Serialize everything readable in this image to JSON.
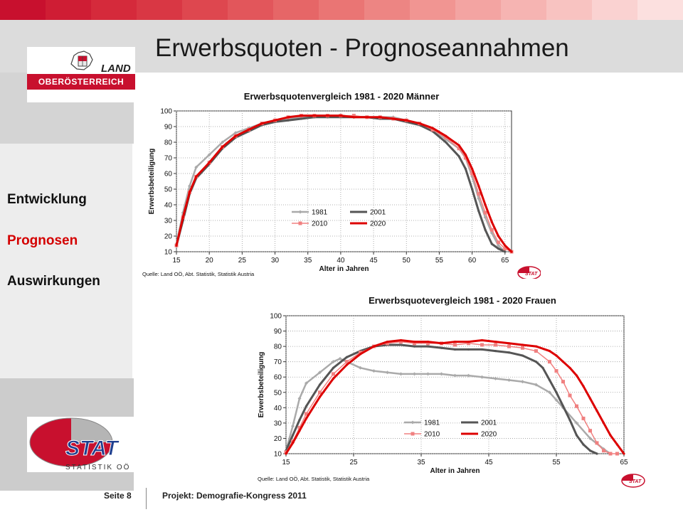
{
  "header": {
    "title": "Erwerbsquoten - Prognoseannahmen",
    "bar_colors": [
      "#c8102e",
      "#cf1d34",
      "#d52a3b",
      "#d93744",
      "#de474f",
      "#e2565b",
      "#e66667",
      "#ea7574",
      "#ed8583",
      "#f19592",
      "#f3a4a2",
      "#f6b4b2",
      "#f8c3c1",
      "#fad2d1",
      "#fce0df"
    ]
  },
  "logos": {
    "land": {
      "word": "LAND",
      "region": "OBERÖSTERREICH"
    },
    "stat": {
      "word": "STAT",
      "subtitle": "STATISTIK OÖ"
    }
  },
  "sidebar": {
    "items": [
      {
        "label": "Entwicklung",
        "active": false
      },
      {
        "label": "Prognosen",
        "active": true
      },
      {
        "label": "Auswirkungen",
        "active": false
      }
    ]
  },
  "footer": {
    "page": "Seite 8",
    "project": "Projekt: Demografie-Kongress  2011"
  },
  "colors": {
    "c1981": "#aaaaaa",
    "c2001": "#555555",
    "c2010": "#f08080",
    "c2020": "#dd0000"
  },
  "chart_data": [
    {
      "type": "line",
      "title": "Erwerbsquotenvergleich 1981 - 2020  Männer",
      "xlabel": "Alter in Jahren",
      "ylabel": "Erwerbsbeteiligung",
      "source": "Quelle: Land OÖ, Abt. Statistik, Statistik Austria",
      "badge": "STAT",
      "xlim": [
        15,
        66
      ],
      "ylim": [
        10,
        100
      ],
      "xticks": [
        15,
        20,
        25,
        30,
        35,
        40,
        45,
        50,
        55,
        60,
        65
      ],
      "yticks": [
        10,
        20,
        30,
        40,
        50,
        60,
        70,
        80,
        90,
        100
      ],
      "grid": true,
      "legend_position": "lower-left",
      "series": [
        {
          "name": "1981",
          "x": [
            15,
            16,
            17,
            18,
            20,
            22,
            24,
            26,
            28,
            30,
            32,
            34,
            36,
            38,
            40,
            42,
            44,
            46,
            48,
            50,
            52,
            54,
            56,
            58,
            59,
            60,
            61,
            62,
            63,
            64,
            65
          ],
          "y": [
            15,
            35,
            52,
            64,
            72,
            80,
            86,
            89,
            92,
            94,
            95,
            96,
            97,
            97,
            97,
            96,
            96,
            96,
            96,
            94,
            92,
            88,
            82,
            76,
            70,
            58,
            44,
            32,
            22,
            14,
            10
          ]
        },
        {
          "name": "2001",
          "x": [
            15,
            16,
            17,
            18,
            20,
            22,
            24,
            26,
            28,
            30,
            32,
            34,
            36,
            38,
            40,
            42,
            44,
            46,
            48,
            50,
            52,
            54,
            56,
            58,
            59,
            60,
            61,
            62,
            63,
            64,
            65
          ],
          "y": [
            14,
            30,
            47,
            57,
            66,
            76,
            83,
            87,
            91,
            93,
            94,
            95,
            96,
            96,
            96,
            96,
            96,
            95,
            95,
            93,
            91,
            87,
            80,
            71,
            63,
            50,
            36,
            24,
            15,
            12,
            10
          ]
        },
        {
          "name": "2010",
          "x": [
            15,
            16,
            17,
            18,
            20,
            22,
            24,
            26,
            28,
            30,
            32,
            34,
            36,
            38,
            40,
            42,
            44,
            46,
            48,
            50,
            52,
            54,
            56,
            58,
            59,
            60,
            61,
            62,
            63,
            64,
            65,
            66
          ],
          "y": [
            14,
            32,
            48,
            58,
            67,
            77,
            84,
            88,
            92,
            94,
            96,
            97,
            97,
            97,
            97,
            97,
            96,
            96,
            95,
            94,
            92,
            88,
            83,
            76,
            70,
            60,
            47,
            35,
            24,
            16,
            12,
            10
          ]
        },
        {
          "name": "2020",
          "x": [
            15,
            16,
            17,
            18,
            20,
            22,
            24,
            26,
            28,
            30,
            32,
            34,
            36,
            38,
            40,
            42,
            44,
            46,
            48,
            50,
            52,
            54,
            56,
            58,
            59,
            60,
            61,
            62,
            63,
            64,
            65,
            66
          ],
          "y": [
            14,
            32,
            48,
            58,
            67,
            77,
            84,
            88,
            92,
            94,
            96,
            97,
            97,
            97,
            97,
            96,
            96,
            96,
            95,
            94,
            92,
            89,
            84,
            78,
            72,
            63,
            52,
            40,
            29,
            20,
            14,
            10
          ]
        }
      ]
    },
    {
      "type": "line",
      "title": "Erwerbsquotevergleich 1981 - 2020 Frauen",
      "xlabel": "Alter in Jahren",
      "ylabel": "Erwerbsbeteiligung",
      "source": "Quelle: Land OÖ, Abt. Statistik, Statistik Austria",
      "badge": "STAT",
      "xlim": [
        15,
        65
      ],
      "ylim": [
        10,
        100
      ],
      "xticks": [
        15,
        25,
        35,
        45,
        55,
        65
      ],
      "yticks": [
        10,
        20,
        30,
        40,
        50,
        60,
        70,
        80,
        90,
        100
      ],
      "grid": true,
      "legend_position": "lower-center",
      "series": [
        {
          "name": "1981",
          "x": [
            15,
            16,
            17,
            18,
            20,
            22,
            23,
            24,
            26,
            28,
            30,
            32,
            34,
            36,
            38,
            40,
            42,
            44,
            46,
            48,
            50,
            52,
            54,
            55,
            56,
            58,
            60,
            62,
            63
          ],
          "y": [
            12,
            28,
            46,
            56,
            63,
            70,
            72,
            70,
            66,
            64,
            63,
            62,
            62,
            62,
            62,
            61,
            61,
            60,
            59,
            58,
            57,
            55,
            50,
            45,
            40,
            30,
            20,
            13,
            10
          ]
        },
        {
          "name": "2001",
          "x": [
            15,
            16,
            17,
            18,
            20,
            22,
            24,
            26,
            28,
            30,
            32,
            34,
            36,
            38,
            40,
            42,
            44,
            46,
            48,
            50,
            52,
            53,
            54,
            55,
            56,
            57,
            58,
            59,
            60,
            61
          ],
          "y": [
            12,
            22,
            32,
            41,
            55,
            66,
            73,
            77,
            80,
            81,
            81,
            80,
            80,
            79,
            78,
            78,
            78,
            77,
            76,
            74,
            70,
            66,
            58,
            50,
            41,
            32,
            22,
            16,
            12,
            10
          ]
        },
        {
          "name": "2010",
          "x": [
            15,
            16,
            17,
            18,
            20,
            22,
            24,
            26,
            28,
            30,
            32,
            34,
            36,
            38,
            40,
            42,
            44,
            46,
            48,
            50,
            52,
            54,
            55,
            56,
            57,
            58,
            59,
            60,
            61,
            62,
            63,
            64
          ],
          "y": [
            11,
            18,
            27,
            36,
            50,
            62,
            70,
            76,
            80,
            82,
            83,
            82,
            82,
            82,
            81,
            82,
            81,
            81,
            80,
            79,
            77,
            70,
            64,
            57,
            48,
            41,
            33,
            25,
            17,
            12,
            10,
            10
          ]
        },
        {
          "name": "2020",
          "x": [
            15,
            16,
            17,
            18,
            20,
            22,
            24,
            26,
            28,
            30,
            32,
            34,
            36,
            38,
            40,
            42,
            44,
            46,
            48,
            50,
            52,
            54,
            55,
            56,
            57,
            58,
            59,
            60,
            61,
            62,
            63,
            64,
            65
          ],
          "y": [
            10,
            17,
            25,
            33,
            47,
            59,
            68,
            75,
            80,
            83,
            84,
            83,
            83,
            82,
            83,
            83,
            84,
            83,
            82,
            81,
            80,
            77,
            74,
            70,
            66,
            61,
            54,
            46,
            38,
            30,
            22,
            16,
            10
          ]
        }
      ]
    }
  ]
}
